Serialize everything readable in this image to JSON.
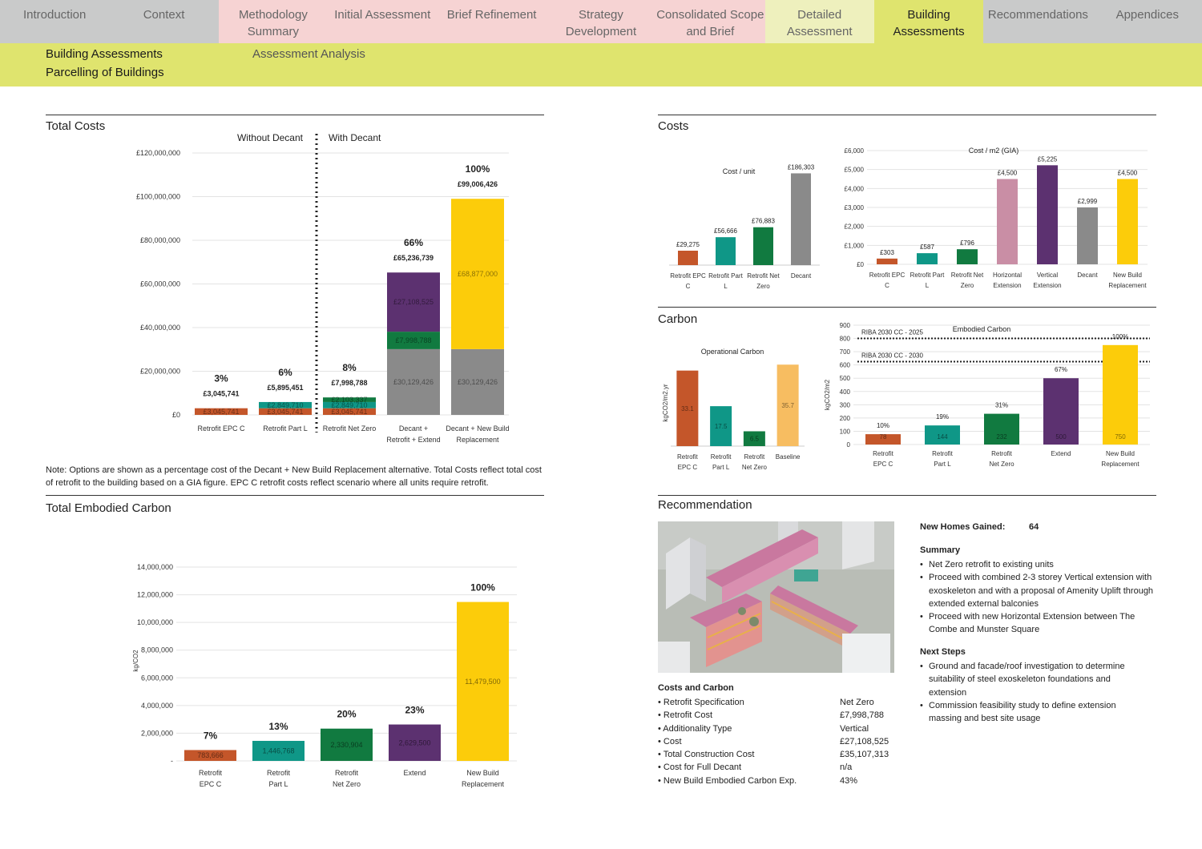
{
  "nav": {
    "tabs": [
      "Introduction",
      "Context",
      "Methodology Summary",
      "Initial Assessment",
      "Brief Refinement",
      "Strategy Development",
      "Consolidated Scope and Brief",
      "Detailed Assessment",
      "Building Assessments",
      "Recommendations",
      "Appendices"
    ]
  },
  "subnav": {
    "items": [
      "Building Assessments",
      "Parcelling of Buildings",
      "Assessment Analysis"
    ]
  },
  "colors": {
    "orange": "#c4562a",
    "teal": "#0f9787",
    "green": "#117a40",
    "purple": "#5c3170",
    "grey": "#8a8a8a",
    "yellow": "#fccc0a",
    "pink": "#c98ea5",
    "lightorange": "#f7bd61",
    "nav_active": "#dfe46e"
  },
  "total_costs": {
    "title": "Total Costs",
    "label_without": "Without Decant",
    "label_with": "With Decant",
    "note": "Note: Options are shown as a percentage cost of the Decant + New Build Replacement alternative. Total Costs reflect total cost of retrofit to the building based on a GIA figure. EPC C retrofit costs reflect scenario where all units require retrofit."
  },
  "costs_panel_title": "Costs",
  "carbon_panel_title": "Carbon",
  "embodied_title": "Total Embodied Carbon",
  "recommendation": {
    "title": "Recommendation",
    "new_homes_label": "New Homes Gained:",
    "new_homes_value": "64",
    "summary_heading": "Summary",
    "summary_items": [
      "Net Zero retrofit to existing units",
      "Proceed with combined 2-3 storey Vertical  extension with exoskeleton and with a proposal of Amenity Uplift through extended external balconies",
      "Proceed with new Horizontal Extension between The Combe and Munster Square"
    ],
    "next_heading": "Next Steps",
    "next_items": [
      "Ground and facade/roof investigation to determine suitability of steel exoskeleton foundations and extension",
      "Commission feasibility study to define extension massing and best site usage"
    ],
    "cc_heading": "Costs and Carbon",
    "cc_rows": [
      [
        "Retrofit Specification",
        "Net Zero"
      ],
      [
        "Retrofit Cost",
        "£7,998,788"
      ],
      [
        "Additionality Type",
        "Vertical"
      ],
      [
        "Cost",
        "£27,108,525"
      ],
      [
        "Total Construction Cost",
        "£35,107,313"
      ],
      [
        "Cost for Full Decant",
        "n/a"
      ],
      [
        "New Build Embodied Carbon Exp.",
        "43%"
      ]
    ]
  },
  "chart_data": [
    {
      "id": "total_costs",
      "type": "bar",
      "stacked": true,
      "title": "Total Costs",
      "ylim": [
        0,
        120000000
      ],
      "yticks": [
        "£0",
        "£20,000,000",
        "£40,000,000",
        "£60,000,000",
        "£80,000,000",
        "£100,000,000",
        "£120,000,000"
      ],
      "categories": [
        [
          "Retrofit EPC C"
        ],
        [
          "Retrofit Part L"
        ],
        [
          "Retrofit Net Zero"
        ],
        [
          "Decant +",
          "Retrofit + Extend"
        ],
        [
          "Decant + New Build",
          "Replacement"
        ]
      ],
      "bars": [
        {
          "total": "£3,045,741",
          "pct": "3%",
          "segments": [
            {
              "value": 3045741,
              "label": "£3,045,741",
              "color": "orange"
            }
          ]
        },
        {
          "total": "£5,895,451",
          "pct": "6%",
          "segments": [
            {
              "value": 3045741,
              "label": "£3,045,741",
              "color": "orange"
            },
            {
              "value": 2849710,
              "label": "£2,849,710",
              "color": "teal"
            }
          ]
        },
        {
          "total": "£7,998,788",
          "pct": "8%",
          "segments": [
            {
              "value": 3045741,
              "label": "£3,045,741",
              "color": "orange"
            },
            {
              "value": 2849710,
              "label": "£2,849,710",
              "color": "teal"
            },
            {
              "value": 2103337,
              "label": "£2,103,337",
              "color": "green"
            }
          ]
        },
        {
          "total": "£65,236,739",
          "pct": "66%",
          "segments": [
            {
              "value": 30129426,
              "label": "£30,129,426",
              "color": "grey"
            },
            {
              "value": 7998788,
              "label": "£7,998,788",
              "color": "green"
            },
            {
              "value": 27108525,
              "label": "£27,108,525",
              "color": "purple"
            }
          ]
        },
        {
          "total": "£99,006,426",
          "pct": "100%",
          "segments": [
            {
              "value": 30129426,
              "label": "£30,129,426",
              "color": "grey"
            },
            {
              "value": 68877000,
              "label": "£68,877,000",
              "color": "yellow"
            }
          ]
        }
      ]
    },
    {
      "id": "cost_unit",
      "type": "bar",
      "title": "Cost / unit",
      "categories": [
        [
          "Retrofit EPC",
          "C"
        ],
        [
          "Retrofit Part",
          "L"
        ],
        [
          "Retrofit Net",
          "Zero"
        ],
        [
          "Decant"
        ]
      ],
      "values": [
        29275,
        56666,
        76883,
        186303
      ],
      "labels": [
        "£29,275",
        "£56,666",
        "£76,883",
        "£186,303"
      ],
      "colors": [
        "orange",
        "teal",
        "green",
        "grey"
      ],
      "ylim": [
        0,
        200000
      ]
    },
    {
      "id": "cost_m2",
      "type": "bar",
      "title": "Cost / m2 (GIA)",
      "categories": [
        [
          "Retrofit EPC",
          "C"
        ],
        [
          "Retrofit Part",
          "L"
        ],
        [
          "Retrofit Net",
          "Zero"
        ],
        [
          "Horizontal",
          "Extension"
        ],
        [
          "Vertical",
          "Extension"
        ],
        [
          "Decant"
        ],
        [
          "New Build",
          "Replacement"
        ]
      ],
      "values": [
        303,
        587,
        796,
        4500,
        5225,
        2999,
        4500
      ],
      "labels": [
        "£303",
        "£587",
        "£796",
        "£4,500",
        "£5,225",
        "£2,999",
        "£4,500"
      ],
      "colors": [
        "orange",
        "teal",
        "green",
        "pink",
        "purple",
        "grey",
        "yellow"
      ],
      "ylim": [
        0,
        6000
      ],
      "yticks": [
        "£0",
        "£1,000",
        "£2,000",
        "£3,000",
        "£4,000",
        "£5,000",
        "£6,000"
      ]
    },
    {
      "id": "operational",
      "type": "bar",
      "title": "Operational Carbon",
      "ylabel": "kgCO2/m2.yr",
      "categories": [
        [
          "Retrofit",
          "EPC C"
        ],
        [
          "Retrofit",
          "Part L"
        ],
        [
          "Retrofit",
          "Net Zero"
        ],
        [
          "Baseline"
        ]
      ],
      "values": [
        33.1,
        17.5,
        6.5,
        35.7
      ],
      "labels": [
        "33.1",
        "17.5",
        "6.5",
        "35.7"
      ],
      "colors": [
        "orange",
        "teal",
        "green",
        "lightorange"
      ],
      "ylim": [
        0,
        40
      ]
    },
    {
      "id": "embodied",
      "type": "bar",
      "title": "Embodied Carbon",
      "ylabel": "kgCO2/m2",
      "categories": [
        [
          "Retrofit",
          "EPC C"
        ],
        [
          "Retrofit",
          "Part L"
        ],
        [
          "Retrofit",
          "Net Zero"
        ],
        [
          "Extend"
        ],
        [
          "New Build",
          "Replacement"
        ]
      ],
      "values": [
        78,
        144,
        232,
        500,
        750
      ],
      "labels": [
        "78",
        "144",
        "232",
        "500",
        "750"
      ],
      "pcts": [
        "10%",
        "19%",
        "31%",
        "67%",
        "100%"
      ],
      "colors": [
        "orange",
        "teal",
        "green",
        "purple",
        "yellow"
      ],
      "ylim": [
        0,
        900
      ],
      "yticks": [
        "0",
        "100",
        "200",
        "300",
        "400",
        "500",
        "600",
        "700",
        "800",
        "900"
      ],
      "refs": [
        {
          "label": "RIBA 2030 CC - 2025",
          "value": 800
        },
        {
          "label": "RIBA 2030 CC - 2030",
          "value": 625
        }
      ]
    },
    {
      "id": "total_embodied",
      "type": "bar",
      "title": "Total Embodied Carbon",
      "ylabel": "kg/CO2",
      "categories": [
        [
          "Retrofit",
          "EPC C"
        ],
        [
          "Retrofit",
          "Part L"
        ],
        [
          "Retrofit",
          "Net Zero"
        ],
        [
          "Extend"
        ],
        [
          "New Build",
          "Replacement"
        ]
      ],
      "values": [
        783666,
        1446768,
        2330904,
        2629500,
        11479500
      ],
      "labels": [
        "783,666",
        "1,446,768",
        "2,330,904",
        "2,629,500",
        "11,479,500"
      ],
      "pcts": [
        "7%",
        "13%",
        "20%",
        "23%",
        "100%"
      ],
      "colors": [
        "orange",
        "teal",
        "green",
        "purple",
        "yellow"
      ],
      "ylim": [
        0,
        14000000
      ],
      "yticks": [
        "-",
        "2,000,000",
        "4,000,000",
        "6,000,000",
        "8,000,000",
        "10,000,000",
        "12,000,000",
        "14,000,000"
      ]
    }
  ]
}
